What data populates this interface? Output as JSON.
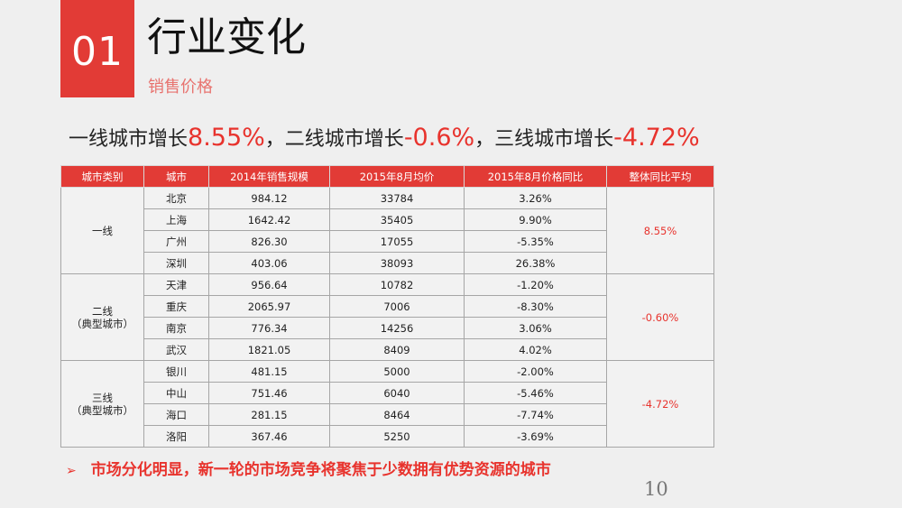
{
  "header": {
    "number": "01",
    "title": "行业变化",
    "subtitle": "销售价格"
  },
  "summary": {
    "part1": "一线城市增长",
    "val1": "8.55%",
    "part2": "，二线城市增长",
    "val2": "-0.6%",
    "part3": "，三线城市增长",
    "val3": "-4.72%"
  },
  "table": {
    "headers": [
      "城市类别",
      "城市",
      "2014年销售规模",
      "2015年8月均价",
      "2015年8月价格同比",
      "整体同比平均"
    ],
    "groups": [
      {
        "category_line1": "一线",
        "category_line2": "",
        "average": "8.55%",
        "rows": [
          {
            "city": "北京",
            "scale": "984.12",
            "price": "33784",
            "yoy": "3.26%"
          },
          {
            "city": "上海",
            "scale": "1642.42",
            "price": "35405",
            "yoy": "9.90%"
          },
          {
            "city": "广州",
            "scale": "826.30",
            "price": "17055",
            "yoy": "-5.35%"
          },
          {
            "city": "深圳",
            "scale": "403.06",
            "price": "38093",
            "yoy": "26.38%"
          }
        ]
      },
      {
        "category_line1": "二线",
        "category_line2": "（典型城市）",
        "average": "-0.60%",
        "rows": [
          {
            "city": "天津",
            "scale": "956.64",
            "price": "10782",
            "yoy": "-1.20%"
          },
          {
            "city": "重庆",
            "scale": "2065.97",
            "price": "7006",
            "yoy": "-8.30%"
          },
          {
            "city": "南京",
            "scale": "776.34",
            "price": "14256",
            "yoy": "3.06%"
          },
          {
            "city": "武汉",
            "scale": "1821.05",
            "price": "8409",
            "yoy": "4.02%"
          }
        ]
      },
      {
        "category_line1": "三线",
        "category_line2": "（典型城市）",
        "average": "-4.72%",
        "rows": [
          {
            "city": "银川",
            "scale": "481.15",
            "price": "5000",
            "yoy": "-2.00%"
          },
          {
            "city": "中山",
            "scale": "751.46",
            "price": "6040",
            "yoy": "-5.46%"
          },
          {
            "city": "海口",
            "scale": "281.15",
            "price": "8464",
            "yoy": "-7.74%"
          },
          {
            "city": "洛阳",
            "scale": "367.46",
            "price": "5250",
            "yoy": "-3.69%"
          }
        ]
      }
    ]
  },
  "conclusion": {
    "bullet_icon": "arrow-right-icon",
    "text": "市场分化明显，新一轮的市场竞争将聚焦于少数拥有优势资源的城市"
  },
  "page_number": "10",
  "colors": {
    "accent": "#e23b36",
    "highlight_text": "#e8332d",
    "subtitle": "#e8736f",
    "background": "#efefef"
  }
}
